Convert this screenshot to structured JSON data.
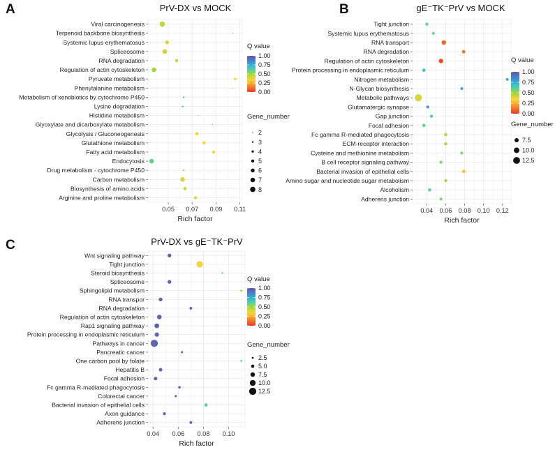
{
  "colors": {
    "gradient": [
      "#6a51a3",
      "#3f8fd0",
      "#3ec8c8",
      "#9fd63f",
      "#ffd23a",
      "#f08a2a",
      "#e8372d"
    ],
    "grid": "#ececec",
    "bg": "#ffffff"
  },
  "chart_data": [
    {
      "type": "scatter",
      "panel_label": "A",
      "title": "PrV-DX vs MOCK",
      "xlabel": "Rich factor",
      "xlim": [
        0.033,
        0.112
      ],
      "xticks": [
        0.05,
        0.07,
        0.09,
        0.11
      ],
      "xtick_labels": [
        "0.05",
        "0.07",
        "0.09",
        "0.11"
      ],
      "color_legend": {
        "title": "Q value",
        "labels": [
          "1.00",
          "0.75",
          "0.50",
          "0.25",
          "0.00"
        ]
      },
      "size_legend": {
        "title": "Gene_number",
        "labels": [
          "2",
          "3",
          "4",
          "5",
          "6",
          "7",
          "8"
        ],
        "values": [
          2,
          3,
          4,
          5,
          6,
          7,
          8
        ]
      },
      "size_range": [
        2,
        8
      ],
      "points": [
        {
          "term": "Viral carcinogenesis",
          "rich_factor": 0.045,
          "q_value": 0.45,
          "gene_number": 8
        },
        {
          "term": "Terpenoid backbone biosynthesis",
          "rich_factor": 0.104,
          "q_value": 0.8,
          "gene_number": 2
        },
        {
          "term": "Systemic lupus erythematosus",
          "rich_factor": 0.049,
          "q_value": 0.4,
          "gene_number": 6
        },
        {
          "term": "Spliceosome",
          "rich_factor": 0.047,
          "q_value": 0.42,
          "gene_number": 7
        },
        {
          "term": "RNA degradation",
          "rich_factor": 0.057,
          "q_value": 0.45,
          "gene_number": 5
        },
        {
          "term": "Regulation of actin cytoskeleton",
          "rich_factor": 0.038,
          "q_value": 0.5,
          "gene_number": 7
        },
        {
          "term": "Pyruvate metabolism",
          "rich_factor": 0.106,
          "q_value": 0.32,
          "gene_number": 4
        },
        {
          "term": "Phenylalanine metabolism",
          "rich_factor": 0.104,
          "q_value": 0.55,
          "gene_number": 2
        },
        {
          "term": "Metabolism of xenobiotics by cytochrome P450",
          "rich_factor": 0.063,
          "q_value": 0.75,
          "gene_number": 3
        },
        {
          "term": "Lysine degradation",
          "rich_factor": 0.062,
          "q_value": 0.7,
          "gene_number": 3
        },
        {
          "term": "Histidine metabolism",
          "rich_factor": 0.075,
          "q_value": 0.5,
          "gene_number": 2
        },
        {
          "term": "Glyoxylate and dicarboxylate metabolism",
          "rich_factor": 0.087,
          "q_value": 0.75,
          "gene_number": 2
        },
        {
          "term": "Glycolysis / Gluconeogenesis",
          "rich_factor": 0.074,
          "q_value": 0.35,
          "gene_number": 5
        },
        {
          "term": "Glutathione metabolism",
          "rich_factor": 0.08,
          "q_value": 0.35,
          "gene_number": 5
        },
        {
          "term": "Fatty acid metabolism",
          "rich_factor": 0.088,
          "q_value": 0.33,
          "gene_number": 5
        },
        {
          "term": "Endocytosis",
          "rich_factor": 0.036,
          "q_value": 0.6,
          "gene_number": 7
        },
        {
          "term": "Drug metabolism - cytochrome P450",
          "rich_factor": 0.063,
          "q_value": 0.55,
          "gene_number": 3
        },
        {
          "term": "Carbon metabolism",
          "rich_factor": 0.062,
          "q_value": 0.4,
          "gene_number": 7
        },
        {
          "term": "Biosynthesis of amino acids",
          "rich_factor": 0.064,
          "q_value": 0.45,
          "gene_number": 5
        },
        {
          "term": "Arginine and proline metabolism",
          "rich_factor": 0.073,
          "q_value": 0.4,
          "gene_number": 5
        }
      ]
    },
    {
      "type": "scatter",
      "panel_label": "B",
      "title": "gE⁻TK⁻PrV vs MOCK",
      "xlabel": "Rich factor",
      "xlim": [
        0.025,
        0.129
      ],
      "xticks": [
        0.04,
        0.06,
        0.08,
        0.1,
        0.12
      ],
      "xtick_labels": [
        "0.04",
        "0.06",
        "0.08",
        "0.10",
        "0.12"
      ],
      "color_legend": {
        "title": "Q value",
        "labels": [
          "1.00",
          "0.75",
          "0.50",
          "0.25",
          "0.00"
        ]
      },
      "size_legend": {
        "title": "Gene_number",
        "labels": [
          "7.5",
          "10.0",
          "12.5"
        ],
        "values": [
          7.5,
          10,
          12.5
        ]
      },
      "size_range": [
        5,
        13
      ],
      "points": [
        {
          "term": "Tight junction",
          "rich_factor": 0.04,
          "q_value": 0.6,
          "gene_number": 5
        },
        {
          "term": "Systemic lupus erythematosus",
          "rich_factor": 0.047,
          "q_value": 0.6,
          "gene_number": 5
        },
        {
          "term": "RNA transport",
          "rich_factor": 0.058,
          "q_value": 0.1,
          "gene_number": 8
        },
        {
          "term": "RNA degradation",
          "rich_factor": 0.079,
          "q_value": 0.12,
          "gene_number": 6
        },
        {
          "term": "Regulation of actin cytoskeleton",
          "rich_factor": 0.055,
          "q_value": 0.05,
          "gene_number": 8
        },
        {
          "term": "Protein processing in endoplasmic reticulum",
          "rich_factor": 0.037,
          "q_value": 0.7,
          "gene_number": 5.5
        },
        {
          "term": "Nitrogen metabolism",
          "rich_factor": 0.125,
          "q_value": 0.75,
          "gene_number": 5
        },
        {
          "term": "N-Glycan biosynthesis",
          "rich_factor": 0.077,
          "q_value": 0.75,
          "gene_number": 5
        },
        {
          "term": "Metabolic pathways",
          "rich_factor": 0.031,
          "q_value": 0.4,
          "gene_number": 13
        },
        {
          "term": "Glutamatergic synapse",
          "rich_factor": 0.041,
          "q_value": 0.8,
          "gene_number": 5
        },
        {
          "term": "Gap junction",
          "rich_factor": 0.045,
          "q_value": 0.65,
          "gene_number": 5
        },
        {
          "term": "Focal adhesion",
          "rich_factor": 0.037,
          "q_value": 0.6,
          "gene_number": 5.5
        },
        {
          "term": "Fc gamma R-mediated phagocytosis",
          "rich_factor": 0.06,
          "q_value": 0.45,
          "gene_number": 5.5
        },
        {
          "term": "ECM-receptor interaction",
          "rich_factor": 0.06,
          "q_value": 0.45,
          "gene_number": 5.5
        },
        {
          "term": "Cysteine and methionine metabolism",
          "rich_factor": 0.077,
          "q_value": 0.55,
          "gene_number": 5
        },
        {
          "term": "B cell receptor signaling pathway",
          "rich_factor": 0.055,
          "q_value": 0.55,
          "gene_number": 5
        },
        {
          "term": "Bacterial invasion of epithelial cells",
          "rich_factor": 0.079,
          "q_value": 0.3,
          "gene_number": 6
        },
        {
          "term": "Amino sugar and nucleotide sugar metabolism",
          "rich_factor": 0.06,
          "q_value": 0.5,
          "gene_number": 5
        },
        {
          "term": "Alcoholism",
          "rich_factor": 0.043,
          "q_value": 0.6,
          "gene_number": 5.5
        },
        {
          "term": "Adherens junction",
          "rich_factor": 0.055,
          "q_value": 0.55,
          "gene_number": 5
        }
      ]
    },
    {
      "type": "scatter",
      "panel_label": "C",
      "title": "PrV-DX vs gE⁻TK⁻PrV",
      "xlabel": "Rich factor",
      "xlim": [
        0.036,
        0.113
      ],
      "xticks": [
        0.04,
        0.06,
        0.08,
        0.1
      ],
      "xtick_labels": [
        "0.04",
        "0.06",
        "0.08",
        "0.10"
      ],
      "color_legend": {
        "title": "Q value",
        "labels": [
          "1.00",
          "0.75",
          "0.50",
          "0.25",
          "0.00"
        ]
      },
      "size_legend": {
        "title": "Gene_number",
        "labels": [
          "2.5",
          "5.0",
          "7.5",
          "10.0",
          "12.5"
        ],
        "values": [
          2.5,
          5,
          7.5,
          10,
          12.5
        ]
      },
      "size_range": [
        2,
        13
      ],
      "points": [
        {
          "term": "Wnt signaling pathway",
          "rich_factor": 0.053,
          "q_value": 0.95,
          "gene_number": 6
        },
        {
          "term": "Tight junction",
          "rich_factor": 0.077,
          "q_value": 0.35,
          "gene_number": 11
        },
        {
          "term": "Steroid biosynthesis",
          "rich_factor": 0.095,
          "q_value": 0.65,
          "gene_number": 2
        },
        {
          "term": "Spliceosome",
          "rich_factor": 0.053,
          "q_value": 0.95,
          "gene_number": 6
        },
        {
          "term": "Sphingolipid metabolism",
          "rich_factor": 0.11,
          "q_value": 0.5,
          "gene_number": 2.5
        },
        {
          "term": "RNA transpor",
          "rich_factor": 0.046,
          "q_value": 0.95,
          "gene_number": 6
        },
        {
          "term": "RNA degradation",
          "rich_factor": 0.07,
          "q_value": 0.95,
          "gene_number": 4
        },
        {
          "term": "Regulation of actin cytoskeleton",
          "rich_factor": 0.045,
          "q_value": 0.95,
          "gene_number": 7.5
        },
        {
          "term": "Rap1 signaling pathway",
          "rich_factor": 0.043,
          "q_value": 0.95,
          "gene_number": 8
        },
        {
          "term": "Protein processing in endoplasmic reticulum",
          "rich_factor": 0.043,
          "q_value": 0.95,
          "gene_number": 7
        },
        {
          "term": "Pathways in cancer",
          "rich_factor": 0.041,
          "q_value": 0.95,
          "gene_number": 12.5
        },
        {
          "term": "Pancreatic cancer",
          "rich_factor": 0.063,
          "q_value": 0.95,
          "gene_number": 3
        },
        {
          "term": "One carbon pool by folate",
          "rich_factor": 0.11,
          "q_value": 0.7,
          "gene_number": 1.5
        },
        {
          "term": "Hepatitis B",
          "rich_factor": 0.046,
          "q_value": 0.95,
          "gene_number": 5.5
        },
        {
          "term": "Focal adhesion",
          "rich_factor": 0.042,
          "q_value": 0.95,
          "gene_number": 5.5
        },
        {
          "term": "Fc gamma R-mediated phagocytosis",
          "rich_factor": 0.061,
          "q_value": 0.95,
          "gene_number": 3.5
        },
        {
          "term": "Colorectal cancer",
          "rich_factor": 0.058,
          "q_value": 0.95,
          "gene_number": 3
        },
        {
          "term": "Bacterial invasion of epithelial cells",
          "rich_factor": 0.082,
          "q_value": 0.6,
          "gene_number": 5
        },
        {
          "term": "Axon guidance",
          "rich_factor": 0.049,
          "q_value": 0.95,
          "gene_number": 4.5
        },
        {
          "term": "Adherens junction",
          "rich_factor": 0.07,
          "q_value": 0.95,
          "gene_number": 4
        }
      ]
    }
  ]
}
